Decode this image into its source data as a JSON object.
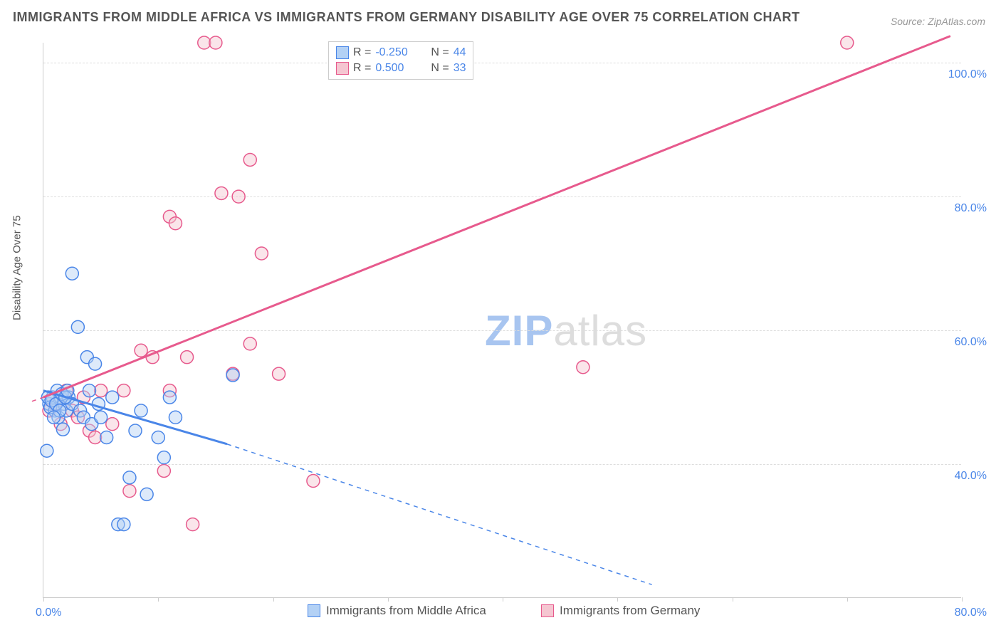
{
  "title": "IMMIGRANTS FROM MIDDLE AFRICA VS IMMIGRANTS FROM GERMANY DISABILITY AGE OVER 75 CORRELATION CHART",
  "source": "Source: ZipAtlas.com",
  "ylabel": "Disability Age Over 75",
  "watermark_a": "ZIP",
  "watermark_b": "atlas",
  "colors": {
    "series_a_fill": "#b3d1f5",
    "series_a_stroke": "#4a86e8",
    "series_b_fill": "#f5c6d1",
    "series_b_stroke": "#e75a8d",
    "axis_text": "#4a86e8",
    "grid": "#dddddd",
    "text": "#555555"
  },
  "xaxis": {
    "min": 0.0,
    "max": 80.0,
    "tick_positions": [
      0,
      10,
      20,
      30,
      40,
      50,
      60,
      70,
      80
    ],
    "label_left": "0.0%",
    "label_right": "80.0%"
  },
  "yaxis": {
    "min": 20.0,
    "max": 103.0,
    "gridlines": [
      40,
      60,
      80,
      100
    ],
    "labels": [
      "40.0%",
      "60.0%",
      "80.0%",
      "100.0%"
    ]
  },
  "stats_legend": {
    "rows": [
      {
        "swatch_fill": "#b3d1f5",
        "swatch_stroke": "#4a86e8",
        "r_label": "R =",
        "r_val": "-0.250",
        "n_label": "N =",
        "n_val": "44"
      },
      {
        "swatch_fill": "#f5c6d1",
        "swatch_stroke": "#e75a8d",
        "r_label": "R =",
        "r_val": "0.500",
        "n_label": "N =",
        "n_val": "33"
      }
    ]
  },
  "bottom_legend": {
    "a_label": "Immigrants from Middle Africa",
    "b_label": "Immigrants from Germany"
  },
  "marker": {
    "radius": 9,
    "fill_opacity": 0.45,
    "stroke_width": 1.5
  },
  "series_a": {
    "color_fill": "#b3d1f5",
    "color_stroke": "#4a86e8",
    "points": [
      [
        0.5,
        49
      ],
      [
        0.8,
        50
      ],
      [
        1.0,
        48
      ],
      [
        1.2,
        51
      ],
      [
        1.3,
        47
      ],
      [
        1.5,
        50
      ],
      [
        1.8,
        49
      ],
      [
        2.0,
        48
      ],
      [
        2.2,
        50
      ],
      [
        2.5,
        49
      ],
      [
        2.5,
        68.5
      ],
      [
        3.0,
        60.5
      ],
      [
        3.2,
        48
      ],
      [
        3.5,
        47
      ],
      [
        3.8,
        56
      ],
      [
        4.0,
        51
      ],
      [
        4.2,
        46
      ],
      [
        4.5,
        55
      ],
      [
        4.8,
        49
      ],
      [
        5.0,
        47
      ],
      [
        5.5,
        44
      ],
      [
        6.0,
        50
      ],
      [
        6.5,
        31
      ],
      [
        7.0,
        31
      ],
      [
        7.5,
        38
      ],
      [
        8.0,
        45
      ],
      [
        8.5,
        48
      ],
      [
        9.0,
        35.5
      ],
      [
        10.0,
        44
      ],
      [
        10.5,
        41
      ],
      [
        11.0,
        50
      ],
      [
        11.5,
        47
      ],
      [
        0.4,
        50
      ],
      [
        0.6,
        48.5
      ],
      [
        0.7,
        49.5
      ],
      [
        1.1,
        49
      ],
      [
        1.4,
        48
      ],
      [
        1.6,
        50.5
      ],
      [
        1.9,
        50
      ],
      [
        2.1,
        51
      ],
      [
        0.3,
        42
      ],
      [
        0.9,
        47
      ],
      [
        1.7,
        45.2
      ],
      [
        16.5,
        53.3
      ]
    ],
    "trend": {
      "solid": [
        [
          0,
          51
        ],
        [
          16,
          43
        ]
      ],
      "dashed": [
        [
          16,
          43
        ],
        [
          53,
          22
        ]
      ]
    }
  },
  "series_b": {
    "color_fill": "#f5c6d1",
    "color_stroke": "#e75a8d",
    "points": [
      [
        0.5,
        48
      ],
      [
        1.0,
        49
      ],
      [
        1.5,
        46
      ],
      [
        2.0,
        51
      ],
      [
        2.5,
        48
      ],
      [
        3.0,
        47
      ],
      [
        3.5,
        50
      ],
      [
        4.0,
        45
      ],
      [
        5.0,
        51
      ],
      [
        6.0,
        46
      ],
      [
        7.0,
        51
      ],
      [
        8.5,
        57
      ],
      [
        9.5,
        56
      ],
      [
        10.5,
        39
      ],
      [
        11.0,
        51
      ],
      [
        12.5,
        56
      ],
      [
        13.0,
        31
      ],
      [
        14.0,
        103
      ],
      [
        15.0,
        103
      ],
      [
        16.5,
        53.5
      ],
      [
        18.0,
        85.5
      ],
      [
        19.0,
        71.5
      ],
      [
        20.5,
        53.5
      ],
      [
        23.5,
        37.5
      ],
      [
        7.5,
        36
      ],
      [
        4.5,
        44
      ],
      [
        11.0,
        77
      ],
      [
        11.5,
        76
      ],
      [
        18.0,
        58
      ],
      [
        47,
        54.5
      ],
      [
        70,
        103
      ],
      [
        15.5,
        80.5
      ],
      [
        17,
        80
      ]
    ],
    "trend": {
      "solid": [
        [
          0,
          50
        ],
        [
          79,
          104
        ]
      ],
      "dashed": [
        [
          -1,
          49.4
        ],
        [
          0,
          50
        ]
      ]
    }
  }
}
